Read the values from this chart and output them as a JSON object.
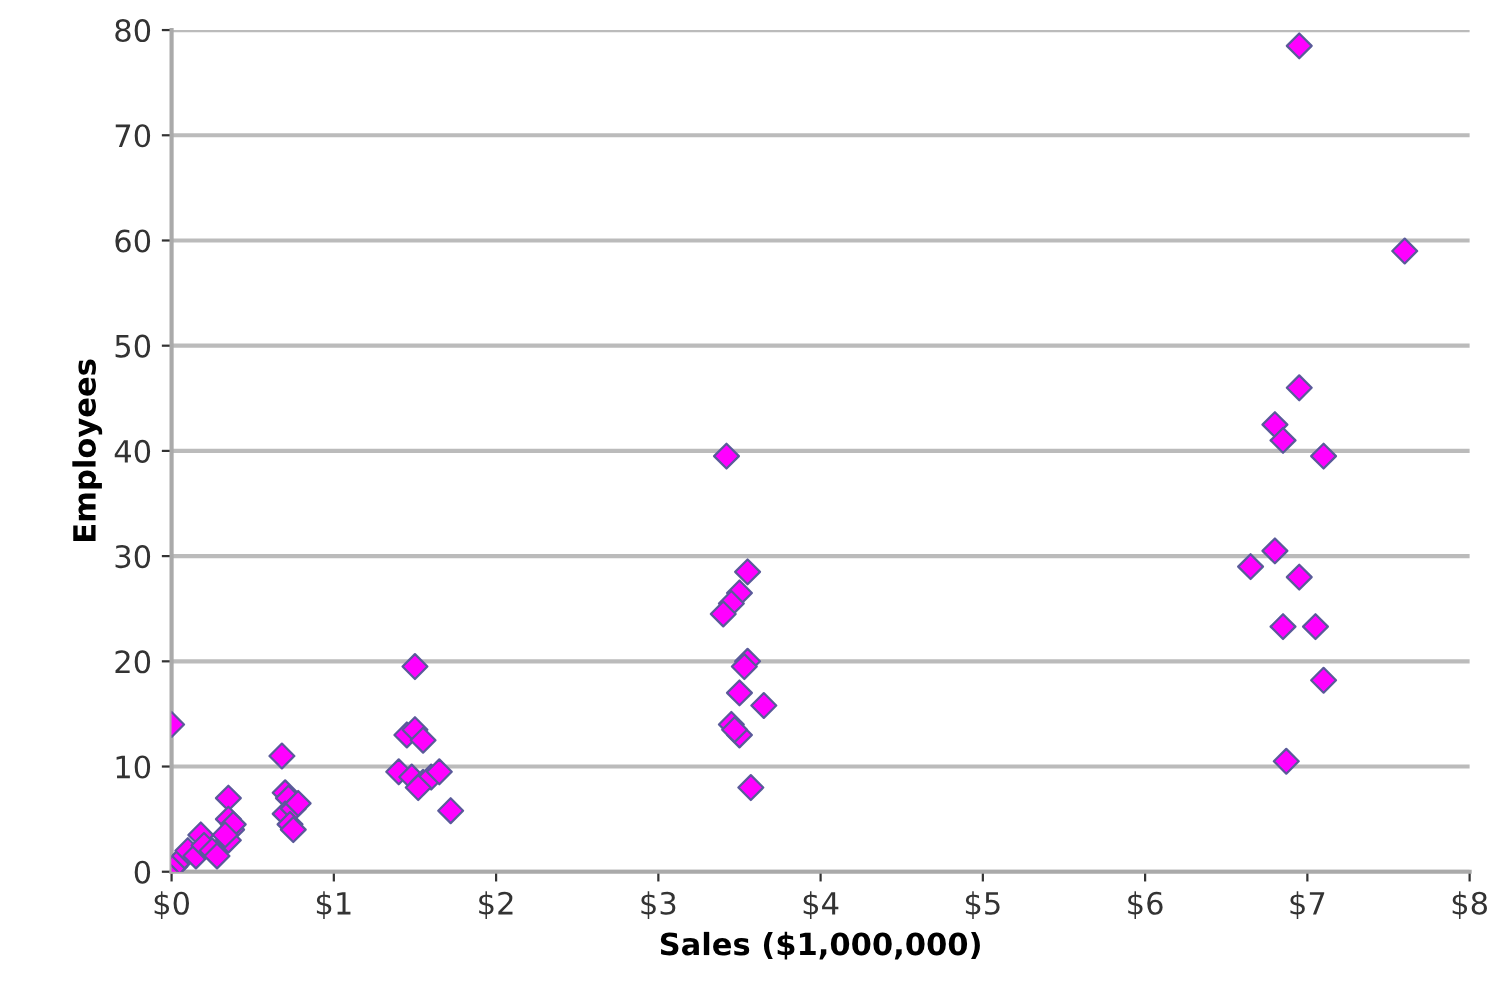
{
  "chart_data": {
    "type": "scatter",
    "xlabel": "Sales ($1,000,000)",
    "ylabel": "Employees",
    "x": [
      0.0,
      0.02,
      0.05,
      0.08,
      0.1,
      0.15,
      0.18,
      0.2,
      0.25,
      0.28,
      0.35,
      0.35,
      0.37,
      0.35,
      0.38,
      0.33,
      0.68,
      0.7,
      0.72,
      0.7,
      0.75,
      0.78,
      0.73,
      0.75,
      1.5,
      1.45,
      1.5,
      1.55,
      1.4,
      1.48,
      1.55,
      1.6,
      1.65,
      1.72,
      1.52,
      3.42,
      3.55,
      3.5,
      3.45,
      3.4,
      3.55,
      3.53,
      3.5,
      3.65,
      3.45,
      3.5,
      3.47,
      3.57,
      6.95,
      7.6,
      6.95,
      6.8,
      6.85,
      7.1,
      6.8,
      6.65,
      6.95,
      6.85,
      7.05,
      7.1,
      6.87
    ],
    "series": [
      {
        "color": "#ff00ff",
        "values": [
          14,
          0.5,
          1,
          1.5,
          2,
          1.5,
          3.5,
          2.5,
          2,
          1.5,
          7,
          5,
          4,
          3,
          4.5,
          3.5,
          11,
          7.5,
          7,
          5.5,
          6,
          6.5,
          4.5,
          4,
          19.5,
          13,
          13.5,
          12.5,
          9.5,
          9,
          8.5,
          9,
          9.5,
          5.8,
          8,
          39.5,
          28.5,
          26.5,
          25.5,
          24.5,
          20,
          19.5,
          17,
          15.8,
          14,
          13,
          13.5,
          8,
          78.5,
          59,
          46,
          42.5,
          41,
          39.5,
          30.5,
          29,
          28,
          23.3,
          23.3,
          18.2,
          10.5
        ]
      }
    ],
    "xlim": [
      0,
      8
    ],
    "ylim": [
      0,
      80
    ],
    "xticks": [
      {
        "value": 0,
        "label": "$0"
      },
      {
        "value": 1,
        "label": "$1"
      },
      {
        "value": 2,
        "label": "$2"
      },
      {
        "value": 3,
        "label": "$3"
      },
      {
        "value": 4,
        "label": "$4"
      },
      {
        "value": 5,
        "label": "$5"
      },
      {
        "value": 6,
        "label": "$6"
      },
      {
        "value": 7,
        "label": "$7"
      },
      {
        "value": 8,
        "label": "$8"
      }
    ],
    "yticks": [
      0,
      10,
      20,
      30,
      40,
      50,
      60,
      70,
      80
    ],
    "grid": "y",
    "marker": "diamond",
    "legend": false
  }
}
